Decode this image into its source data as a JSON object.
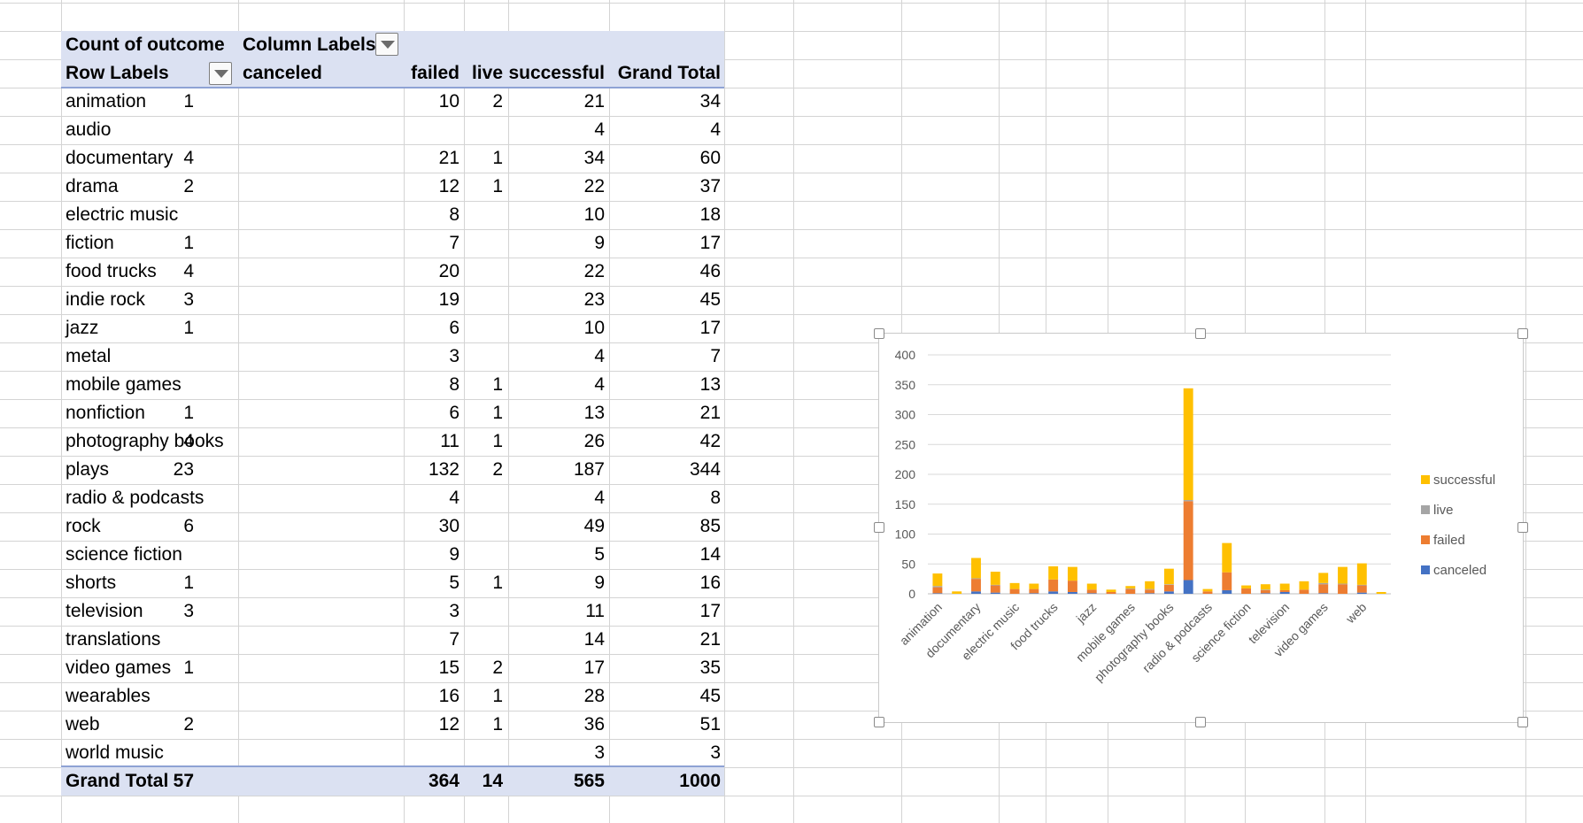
{
  "pivot": {
    "header1": {
      "label": "Count of outcome",
      "column_labels": "Column Labels"
    },
    "header2": {
      "row_labels": "Row Labels",
      "canceled": "canceled",
      "failed": "failed",
      "live": "live",
      "successful": "successful",
      "grand_total": "Grand Total"
    },
    "rows": [
      {
        "label": "animation",
        "canceled": "1",
        "failed": "10",
        "live": "2",
        "successful": "21",
        "total": "34"
      },
      {
        "label": "audio",
        "canceled": "",
        "failed": "",
        "live": "",
        "successful": "4",
        "total": "4"
      },
      {
        "label": "documentary",
        "canceled": "4",
        "failed": "21",
        "live": "1",
        "successful": "34",
        "total": "60"
      },
      {
        "label": "drama",
        "canceled": "2",
        "failed": "12",
        "live": "1",
        "successful": "22",
        "total": "37"
      },
      {
        "label": "electric music",
        "canceled": "",
        "failed": "8",
        "live": "",
        "successful": "10",
        "total": "18"
      },
      {
        "label": "fiction",
        "canceled": "1",
        "failed": "7",
        "live": "",
        "successful": "9",
        "total": "17"
      },
      {
        "label": "food trucks",
        "canceled": "4",
        "failed": "20",
        "live": "",
        "successful": "22",
        "total": "46"
      },
      {
        "label": "indie rock",
        "canceled": "3",
        "failed": "19",
        "live": "",
        "successful": "23",
        "total": "45"
      },
      {
        "label": "jazz",
        "canceled": "1",
        "failed": "6",
        "live": "",
        "successful": "10",
        "total": "17"
      },
      {
        "label": "metal",
        "canceled": "",
        "failed": "3",
        "live": "",
        "successful": "4",
        "total": "7"
      },
      {
        "label": "mobile games",
        "canceled": "",
        "failed": "8",
        "live": "1",
        "successful": "4",
        "total": "13"
      },
      {
        "label": "nonfiction",
        "canceled": "1",
        "failed": "6",
        "live": "1",
        "successful": "13",
        "total": "21"
      },
      {
        "label": "photography books",
        "canceled": "4",
        "failed": "11",
        "live": "1",
        "successful": "26",
        "total": "42"
      },
      {
        "label": "plays",
        "canceled": "23",
        "failed": "132",
        "live": "2",
        "successful": "187",
        "total": "344"
      },
      {
        "label": "radio & podcasts",
        "canceled": "",
        "failed": "4",
        "live": "",
        "successful": "4",
        "total": "8"
      },
      {
        "label": "rock",
        "canceled": "6",
        "failed": "30",
        "live": "",
        "successful": "49",
        "total": "85"
      },
      {
        "label": "science fiction",
        "canceled": "",
        "failed": "9",
        "live": "",
        "successful": "5",
        "total": "14"
      },
      {
        "label": "shorts",
        "canceled": "1",
        "failed": "5",
        "live": "1",
        "successful": "9",
        "total": "16"
      },
      {
        "label": "television",
        "canceled": "3",
        "failed": "3",
        "live": "",
        "successful": "11",
        "total": "17"
      },
      {
        "label": "translations",
        "canceled": "",
        "failed": "7",
        "live": "",
        "successful": "14",
        "total": "21"
      },
      {
        "label": "video games",
        "canceled": "1",
        "failed": "15",
        "live": "2",
        "successful": "17",
        "total": "35"
      },
      {
        "label": "wearables",
        "canceled": "",
        "failed": "16",
        "live": "1",
        "successful": "28",
        "total": "45"
      },
      {
        "label": "web",
        "canceled": "2",
        "failed": "12",
        "live": "1",
        "successful": "36",
        "total": "51"
      },
      {
        "label": "world music",
        "canceled": "",
        "failed": "",
        "live": "",
        "successful": "3",
        "total": "3"
      }
    ],
    "grand_total": {
      "label": "Grand Total",
      "canceled": "57",
      "failed": "364",
      "live": "14",
      "successful": "565",
      "total": "1000"
    }
  },
  "chart_data": {
    "type": "bar",
    "stacked": true,
    "categories": [
      "animation",
      "audio",
      "documentary",
      "drama",
      "electric music",
      "fiction",
      "food trucks",
      "indie rock",
      "jazz",
      "metal",
      "mobile games",
      "nonfiction",
      "photography books",
      "plays",
      "radio & podcasts",
      "rock",
      "science fiction",
      "shorts",
      "television",
      "translations",
      "video games",
      "wearables",
      "web",
      "world music"
    ],
    "x_tick_labels": [
      "animation",
      "documentary",
      "electric music",
      "food trucks",
      "jazz",
      "mobile games",
      "photography books",
      "radio & podcasts",
      "science fiction",
      "television",
      "video games",
      "web"
    ],
    "series": [
      {
        "name": "canceled",
        "color": "#4472c4",
        "values": [
          1,
          0,
          4,
          2,
          0,
          1,
          4,
          3,
          1,
          0,
          0,
          1,
          4,
          23,
          0,
          6,
          0,
          1,
          3,
          0,
          1,
          0,
          2,
          0
        ]
      },
      {
        "name": "failed",
        "color": "#ed7d31",
        "values": [
          10,
          0,
          21,
          12,
          8,
          7,
          20,
          19,
          6,
          3,
          8,
          6,
          11,
          132,
          4,
          30,
          9,
          5,
          3,
          7,
          15,
          16,
          12,
          0
        ]
      },
      {
        "name": "live",
        "color": "#a5a5a5",
        "values": [
          2,
          0,
          1,
          1,
          0,
          0,
          0,
          0,
          0,
          0,
          1,
          1,
          1,
          2,
          0,
          0,
          0,
          1,
          0,
          0,
          2,
          1,
          1,
          0
        ]
      },
      {
        "name": "successful",
        "color": "#ffc000",
        "values": [
          21,
          4,
          34,
          22,
          10,
          9,
          22,
          23,
          10,
          4,
          4,
          13,
          26,
          187,
          4,
          49,
          5,
          9,
          11,
          14,
          17,
          28,
          36,
          3
        ]
      }
    ],
    "legend_order": [
      "successful",
      "live",
      "failed",
      "canceled"
    ],
    "ylim": [
      0,
      400
    ],
    "y_ticks": [
      "0",
      "50",
      "100",
      "150",
      "200",
      "250",
      "300",
      "350",
      "400"
    ],
    "legend_position": "right",
    "grid": true
  }
}
